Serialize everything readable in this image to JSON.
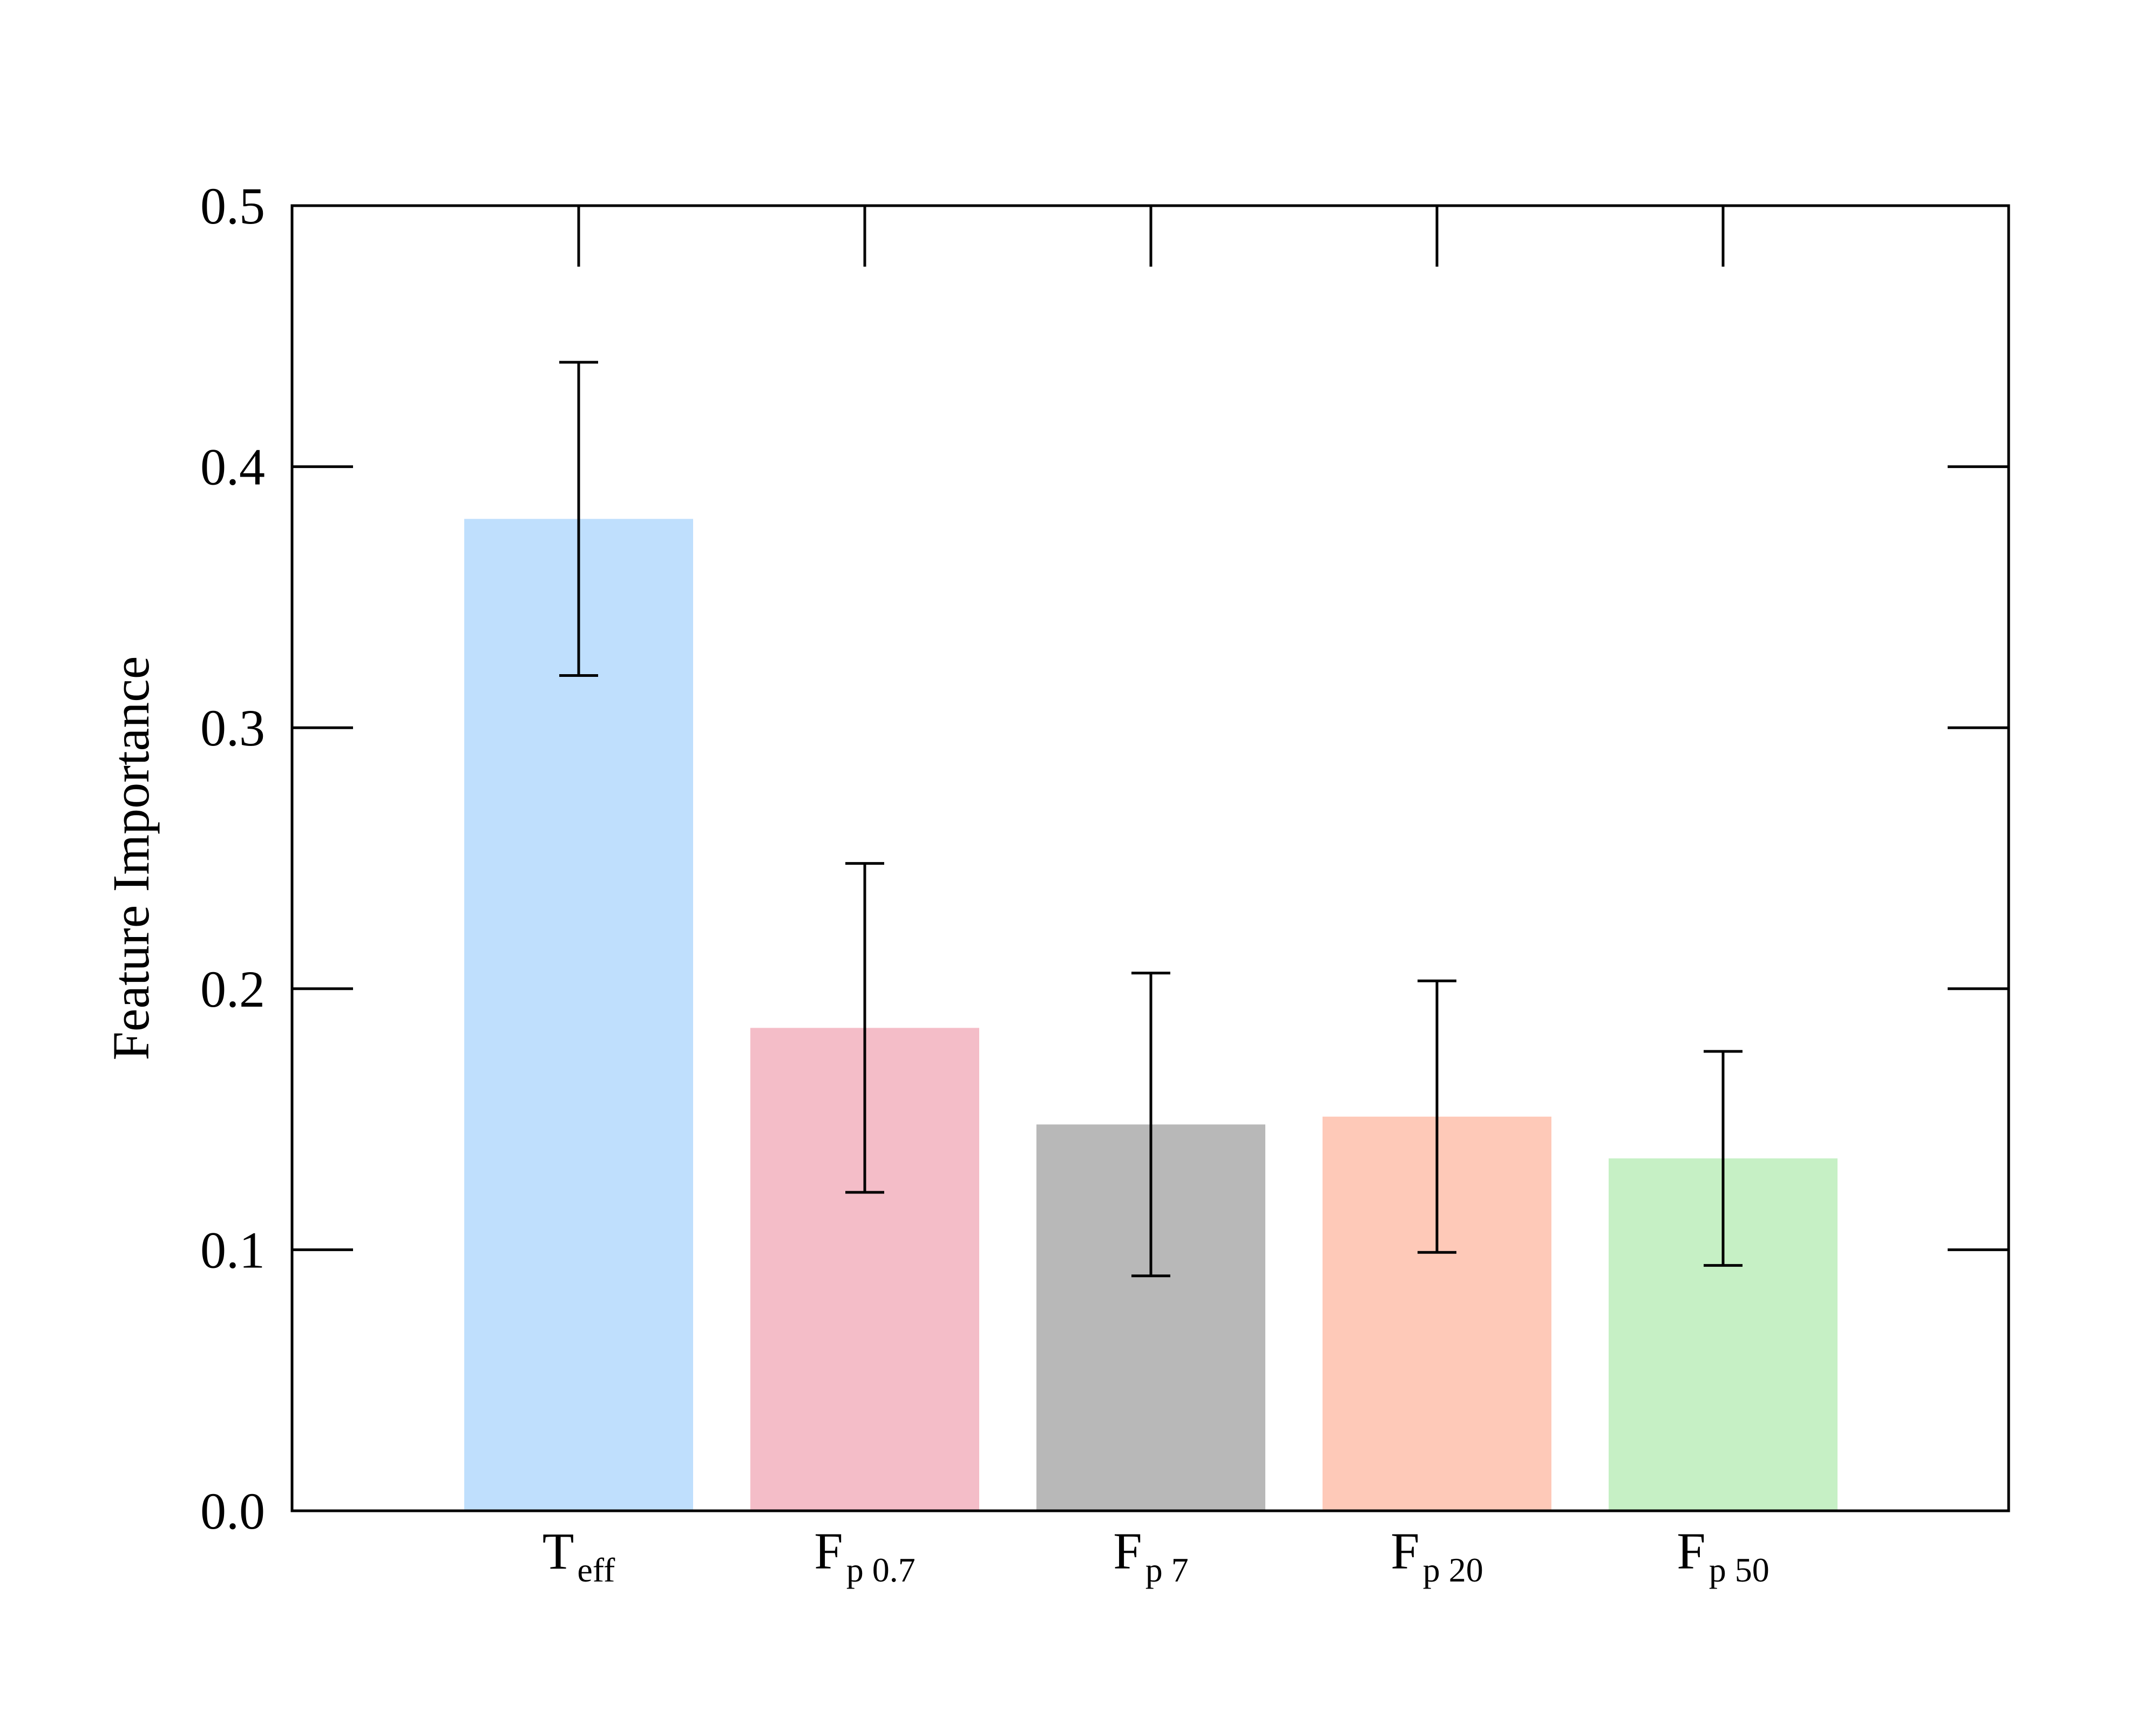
{
  "chart_data": {
    "type": "bar",
    "title": "",
    "xlabel": "",
    "ylabel": "Feature Importance",
    "ylim": [
      0.0,
      0.5
    ],
    "yticks": [
      "0.0",
      "0.1",
      "0.2",
      "0.3",
      "0.4",
      "0.5"
    ],
    "grid": false,
    "categories": [
      {
        "main": "T",
        "sub": "eff"
      },
      {
        "main": "F",
        "sub": "p 0.7"
      },
      {
        "main": "F",
        "sub": "p 7"
      },
      {
        "main": "F",
        "sub": "p 20"
      },
      {
        "main": "F",
        "sub": "p 50"
      }
    ],
    "values": [
      0.38,
      0.185,
      0.148,
      0.151,
      0.135
    ],
    "error_low": [
      0.32,
      0.122,
      0.09,
      0.099,
      0.094
    ],
    "error_high": [
      0.44,
      0.248,
      0.206,
      0.203,
      0.176
    ],
    "colors": [
      "#bfdffd",
      "#f4bdc8",
      "#b8b8b8",
      "#fec9b8",
      "#c6f0c5"
    ]
  }
}
